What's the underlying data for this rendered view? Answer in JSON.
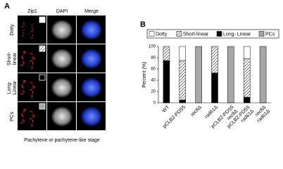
{
  "panel_a": {
    "label": "A",
    "columns": [
      "Zip1",
      "DAPI",
      "Merge"
    ],
    "rows": [
      "Dotty",
      "Short-\nlinear",
      "Long-\nLinear",
      "PCs"
    ],
    "footer": "Pachytene or pachytene-like stage"
  },
  "chart_data": {
    "type": "stacked-bar",
    "panel_label": "B",
    "ylabel": "Percent (%)",
    "categories": [
      [
        "WT"
      ],
      [
        "pCLB2-PDS5"
      ],
      [
        "rec8Δ"
      ],
      [
        "rad61Δ"
      ],
      [
        "pCLB2-PDS5",
        "rec8Δ"
      ],
      [
        "pCLB2-PDS5",
        "rad61Δ"
      ],
      [
        "rec8Δ",
        "rad61Δ"
      ]
    ],
    "category_colors": [
      "#000000",
      "#8b1a1a",
      "#2e8b57",
      "#c0601a",
      "#1a237e",
      "#333333",
      "#5e2a84"
    ],
    "series": [
      {
        "name": "Dotty",
        "color": "#ffffff",
        "values": [
          0,
          25,
          0,
          0,
          0,
          22,
          0
        ]
      },
      {
        "name": "Short-linear",
        "color": "#ffffff",
        "hatch": true,
        "values": [
          25,
          70,
          0,
          47,
          0,
          68,
          0
        ]
      },
      {
        "name": "Long- Linear",
        "color": "#000000",
        "values": [
          75,
          5,
          0,
          53,
          0,
          10,
          0
        ]
      },
      {
        "name": "PCs",
        "color": "#a6a6a6",
        "values": [
          0,
          0,
          100,
          0,
          100,
          0,
          100
        ]
      }
    ],
    "ylim": [
      0,
      100
    ],
    "yticks": [
      0,
      20,
      40,
      60,
      80,
      100
    ]
  }
}
